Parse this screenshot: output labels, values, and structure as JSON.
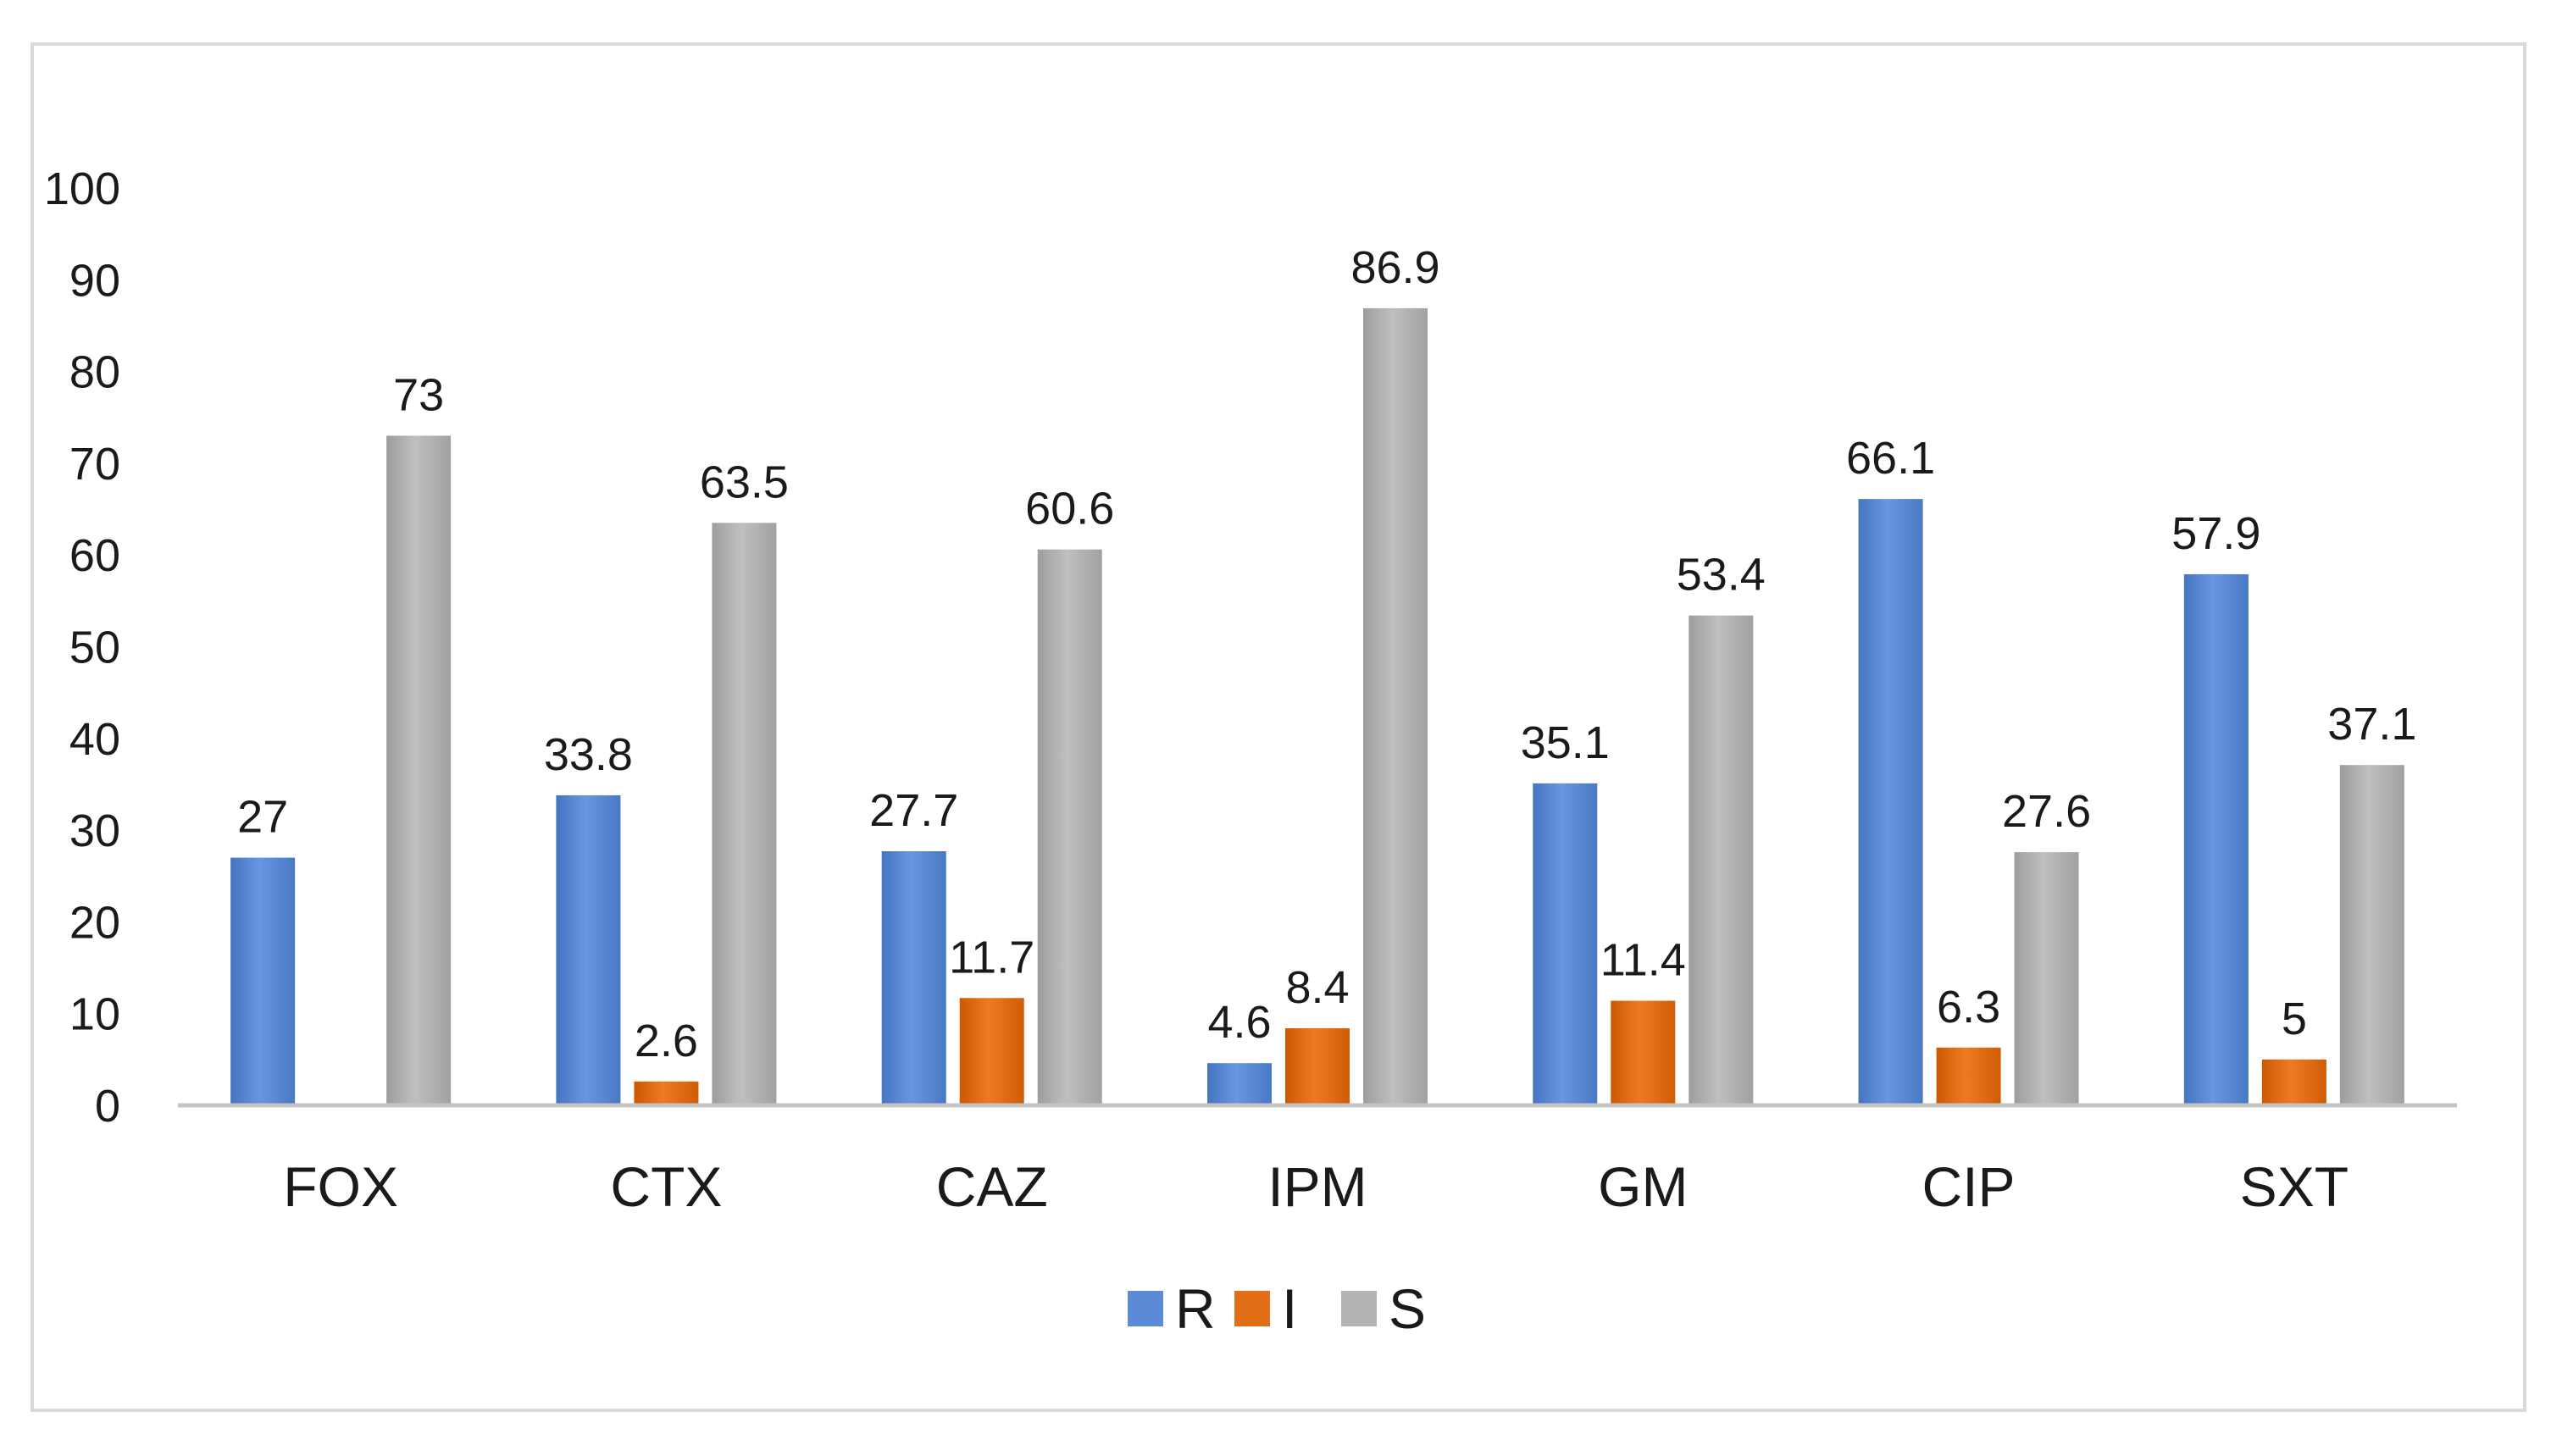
{
  "chart_data": {
    "type": "bar",
    "title": "",
    "xlabel": "",
    "ylabel": "",
    "ylim": [
      0,
      100
    ],
    "yticks": [
      0,
      10,
      20,
      30,
      40,
      50,
      60,
      70,
      80,
      90,
      100
    ],
    "categories": [
      "FOX",
      "CTX",
      "CAZ",
      "IPM",
      "GM",
      "CIP",
      "SXT"
    ],
    "series": [
      {
        "name": "R",
        "color": "#5b8bd6",
        "values": [
          27,
          33.8,
          27.7,
          4.6,
          35.1,
          66.1,
          57.9
        ]
      },
      {
        "name": "I",
        "color": "#e26e17",
        "values": [
          null,
          2.6,
          11.7,
          8.4,
          11.4,
          6.3,
          5
        ]
      },
      {
        "name": "S",
        "color": "#b3b3b3",
        "values": [
          73,
          63.5,
          60.6,
          86.9,
          53.4,
          27.6,
          37.1
        ]
      }
    ],
    "data_labels": [
      [
        "27",
        "33.8",
        "27.7",
        "4.6",
        "35.1",
        "66.1",
        "57.9"
      ],
      [
        "",
        "2.6",
        "11.7",
        "8.4",
        "11.4",
        "6.3",
        "5"
      ],
      [
        "73",
        "63.5",
        "60.6",
        "86.9",
        "53.4",
        "27.6",
        "37.1"
      ]
    ],
    "legend_position": "bottom",
    "grid": false
  }
}
